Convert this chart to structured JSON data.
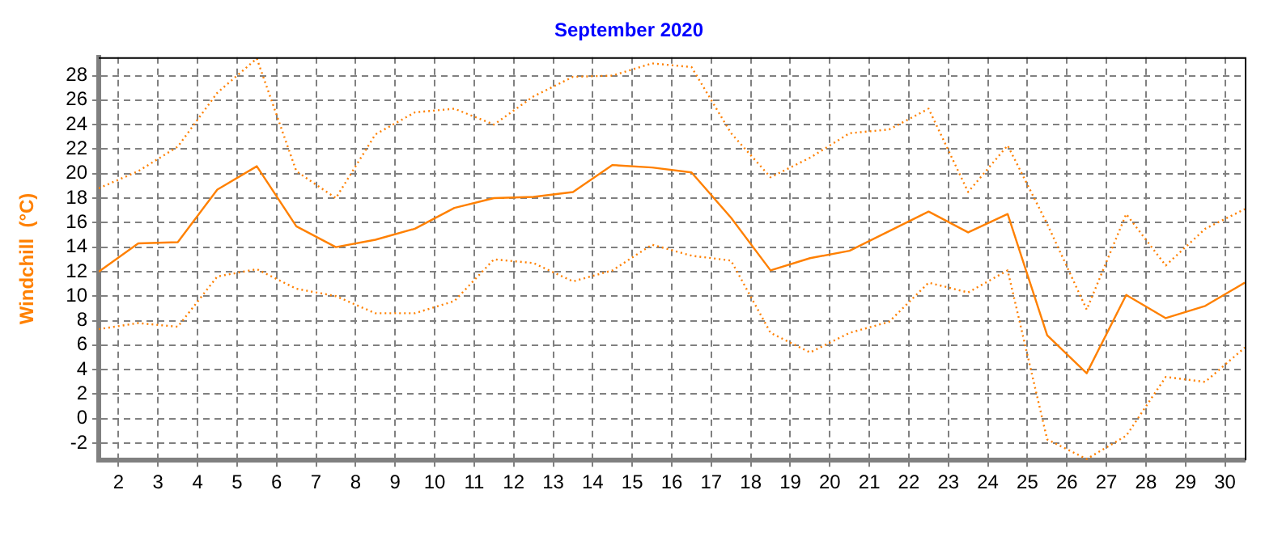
{
  "chart_data": {
    "type": "line",
    "title": "September 2020",
    "ylabel": "Windchill  (°C)",
    "x": [
      1.5,
      2.5,
      3.5,
      4.5,
      5.5,
      6.5,
      7.5,
      8.5,
      9.5,
      10.5,
      11.5,
      12.5,
      13.5,
      14.5,
      15.5,
      16.5,
      17.5,
      18.5,
      19.5,
      20.5,
      21.5,
      22.5,
      23.5,
      24.5,
      25.5,
      26.5,
      27.5,
      28.5,
      29.5,
      30.5
    ],
    "xlim": [
      1.5,
      30.5
    ],
    "xticks": [
      2,
      3,
      4,
      5,
      6,
      7,
      8,
      9,
      10,
      11,
      12,
      13,
      14,
      15,
      16,
      17,
      18,
      19,
      20,
      21,
      22,
      23,
      24,
      25,
      26,
      27,
      28,
      29,
      30
    ],
    "ylim": [
      -3.4,
      29.5
    ],
    "yticks": [
      -2,
      0,
      2,
      4,
      6,
      8,
      10,
      12,
      14,
      16,
      18,
      20,
      22,
      24,
      26,
      28
    ],
    "grid": true,
    "legend": false,
    "marker": "none",
    "series": [
      {
        "color": "#ff8000",
        "line_style": "dotted",
        "values": [
          18.8,
          20.2,
          22.2,
          26.6,
          29.4,
          20.2,
          18,
          23.2,
          25,
          25.3,
          24,
          26.3,
          27.9,
          28,
          29,
          28.7,
          23.3,
          19.7,
          21.3,
          23.3,
          23.6,
          25.3,
          18.5,
          22.3,
          15.9,
          8.9,
          16.7,
          12.5,
          15.5,
          17.1
        ]
      },
      {
        "color": "#ff8000",
        "line_style": "solid",
        "values": [
          12,
          14.3,
          14.4,
          18.7,
          20.6,
          15.7,
          14,
          14.6,
          15.5,
          17.2,
          18,
          18.1,
          18.5,
          20.7,
          20.5,
          20.1,
          16.4,
          12.1,
          13.1,
          13.7,
          15.3,
          16.9,
          15.2,
          16.7,
          6.8,
          3.7,
          10.1,
          8.2,
          9.2,
          11.1
        ]
      },
      {
        "color": "#ff8000",
        "line_style": "dotted",
        "values": [
          7.3,
          7.8,
          7.5,
          11.6,
          12.2,
          10.6,
          10,
          8.6,
          8.6,
          9.6,
          13,
          12.7,
          11.2,
          12.1,
          14.2,
          13.3,
          12.9,
          7,
          5.4,
          7,
          7.9,
          11.1,
          10.3,
          12.1,
          -1.7,
          -3.3,
          -1.4,
          3.4,
          3,
          5.8
        ]
      }
    ]
  }
}
